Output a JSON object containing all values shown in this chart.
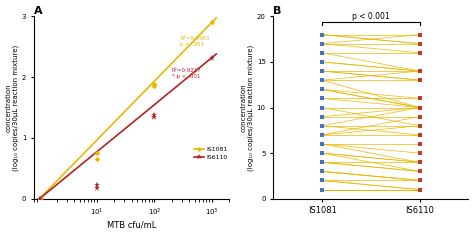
{
  "panel_A": {
    "title": "A",
    "xlabel": "MTB cfu/mL",
    "ylabel": "concentration\n(log₁₀ copies/30μL reaction mixture)",
    "is1081_points": [
      [
        1,
        0.0
      ],
      [
        1,
        0.0
      ],
      [
        10,
        0.75
      ],
      [
        10,
        0.65
      ],
      [
        100,
        1.85
      ],
      [
        100,
        1.88
      ],
      [
        1000,
        2.9
      ]
    ],
    "is6110_points": [
      [
        1,
        0.0
      ],
      [
        1,
        0.0
      ],
      [
        10,
        0.22
      ],
      [
        10,
        0.18
      ],
      [
        100,
        1.38
      ],
      [
        100,
        1.35
      ],
      [
        1000,
        2.32
      ]
    ],
    "is1081_slope": 0.9667,
    "is6110_slope": 0.74,
    "is1081_color": "#e8b800",
    "is6110_color": "#b22222",
    "annotation_is1081": "R²=0.9961\np < .001",
    "annotation_is6110": "R²=0.9217\n* p < .001",
    "ylim": [
      0,
      3
    ],
    "yticks": [
      0,
      1,
      2,
      3
    ],
    "xlim": [
      0.8,
      2000
    ],
    "legend_is1081": "IS1081",
    "legend_is6110": "IS6110"
  },
  "panel_B": {
    "title": "B",
    "xlabel_left": "IS1081",
    "xlabel_right": "IS6110",
    "ylabel": "concentration\n(log₁₀ copies/30μL reaction mixture)",
    "pvalue_text": "p < 0.001",
    "ylim": [
      0,
      20
    ],
    "yticks": [
      0,
      5,
      10,
      15,
      20
    ],
    "is1081_values": [
      18,
      18,
      18,
      17,
      17,
      17,
      16,
      16,
      15,
      15,
      14,
      14,
      14,
      13,
      13,
      13,
      12,
      12,
      12,
      11,
      11,
      10,
      10,
      9,
      9,
      8,
      8,
      8,
      7,
      7,
      7,
      6,
      6,
      6,
      5,
      5,
      5,
      4,
      4,
      4,
      3,
      3,
      3,
      2,
      2,
      2,
      1,
      1,
      1,
      1,
      1,
      1,
      1
    ],
    "is6110_values": [
      18,
      17,
      17,
      18,
      16,
      17,
      16,
      14,
      14,
      14,
      13,
      14,
      13,
      14,
      13,
      10,
      11,
      10,
      10,
      10,
      11,
      10,
      8,
      10,
      9,
      8,
      10,
      7,
      9,
      8,
      7,
      5,
      6,
      4,
      4,
      3,
      4,
      3,
      4,
      3,
      2,
      2,
      2,
      2,
      1,
      1,
      1,
      1,
      1,
      1,
      1,
      1,
      1
    ],
    "line_color": "#e8b800",
    "dot_color_left": "#4472c4",
    "dot_color_right": "#c0392b"
  }
}
